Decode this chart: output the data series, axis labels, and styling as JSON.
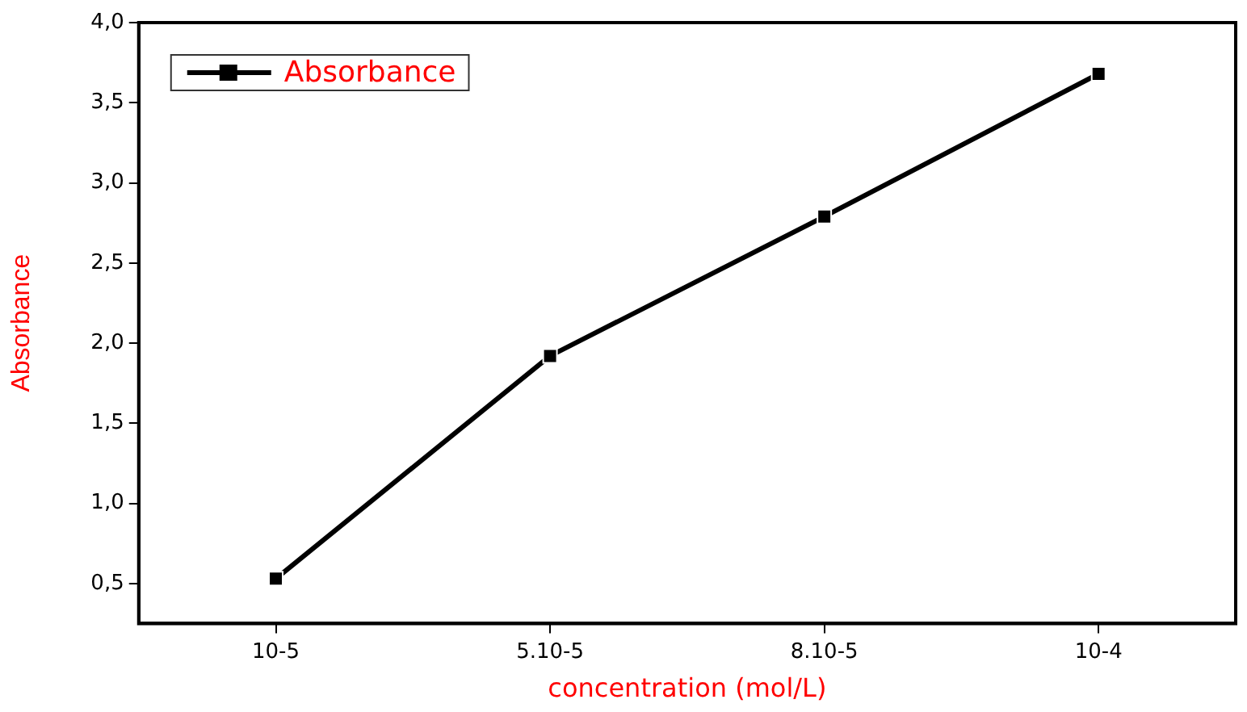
{
  "chart_data": {
    "type": "line",
    "categories": [
      "10-5",
      "5.10-5",
      "8.10-5",
      "10-4"
    ],
    "series": [
      {
        "name": "Absorbance",
        "color": "#000000",
        "values": [
          0.53,
          1.92,
          2.79,
          3.68
        ]
      }
    ],
    "xlabel": "concentration (mol/L)",
    "ylabel": "Absorbance",
    "ylim": [
      0.25,
      4.0
    ],
    "yticks": [
      {
        "value": 0.5,
        "label": "0,5"
      },
      {
        "value": 1.0,
        "label": "1,0"
      },
      {
        "value": 1.5,
        "label": "1,5"
      },
      {
        "value": 2.0,
        "label": "2,0"
      },
      {
        "value": 2.5,
        "label": "2,5"
      },
      {
        "value": 3.0,
        "label": "3,0"
      },
      {
        "value": 3.5,
        "label": "3,5"
      },
      {
        "value": 4.0,
        "label": "4,0"
      }
    ],
    "legend": "top left",
    "marker": "square",
    "line_style": "solid",
    "grid": false
  }
}
